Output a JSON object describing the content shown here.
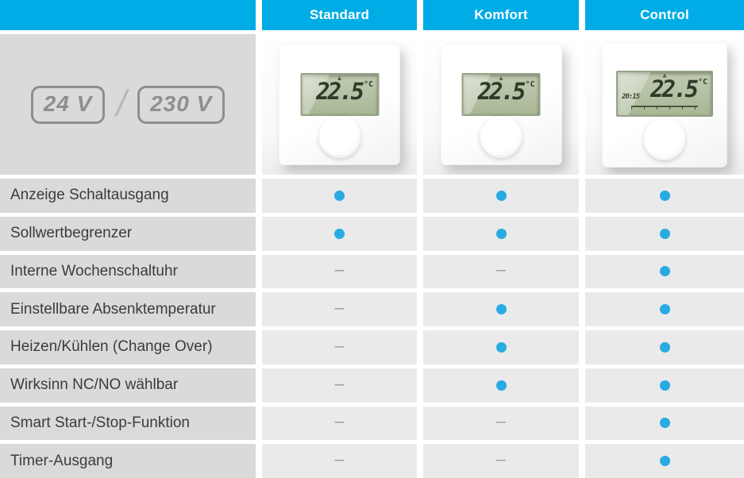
{
  "header": {
    "columns": [
      "Standard",
      "Komfort",
      "Control"
    ]
  },
  "power": {
    "badges": [
      "24 V",
      "230 V"
    ],
    "separator": "/"
  },
  "display": {
    "value": "22.5",
    "unit": "°C",
    "control_time": "20:15"
  },
  "symbols": {
    "no": "–"
  },
  "colors": {
    "header_blue": "#00ace6",
    "dot_blue": "#29abe2",
    "label_bg": "#dadada",
    "value_bg": "#eaeaea",
    "lcd_green": "#b6c2a6"
  },
  "rows": [
    {
      "label": "Anzeige Schaltausgang",
      "values": [
        true,
        true,
        true
      ]
    },
    {
      "label": "Sollwertbegrenzer",
      "values": [
        true,
        true,
        true
      ]
    },
    {
      "label": "Interne Wochenschaltuhr",
      "values": [
        false,
        false,
        true
      ]
    },
    {
      "label": "Einstellbare Absenktemperatur",
      "values": [
        false,
        true,
        true
      ]
    },
    {
      "label": "Heizen/Kühlen (Change Over)",
      "values": [
        false,
        true,
        true
      ]
    },
    {
      "label": "Wirksinn NC/NO wählbar",
      "values": [
        false,
        true,
        true
      ]
    },
    {
      "label": "Smart Start-/Stop-Funktion",
      "values": [
        false,
        false,
        true
      ]
    },
    {
      "label": "Timer-Ausgang",
      "values": [
        false,
        false,
        true
      ]
    }
  ]
}
